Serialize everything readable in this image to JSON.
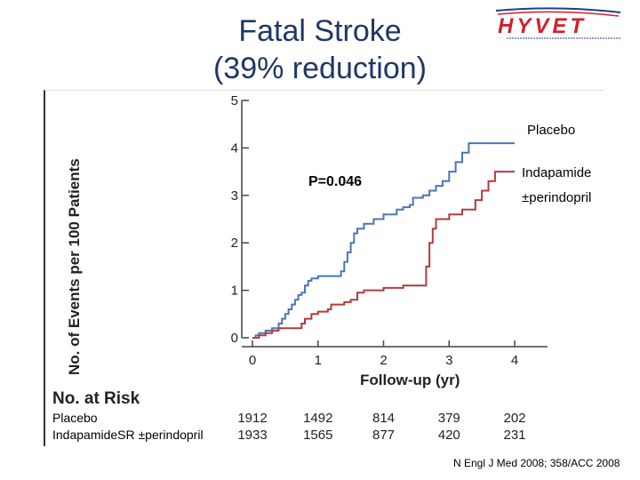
{
  "slide": {
    "title_line1": "Fatal Stroke",
    "title_line2": "(39% reduction)",
    "logo_text": "HYVET",
    "source": "N Engl J Med 2008; 358/ACC 2008"
  },
  "colors": {
    "title": "#1f3864",
    "placebo": "#4a75b6",
    "indapamide": "#b23b3b",
    "logo_red": "#d21f2a",
    "logo_blue": "#1e3f8f"
  },
  "chart_data": {
    "type": "line",
    "title": "",
    "xlabel": "Follow-up (yr)",
    "ylabel": "No. of Events per 100 Patients",
    "xlim": [
      0,
      4.5
    ],
    "ylim": [
      0,
      5
    ],
    "xticks": [
      0,
      1,
      2,
      3,
      4
    ],
    "yticks": [
      0,
      1,
      2,
      3,
      4,
      5
    ],
    "grid": false,
    "p_value": "P=0.046",
    "series": [
      {
        "name": "Placebo",
        "label_lines": [
          "Placebo"
        ],
        "color": "#4a75b6",
        "points": [
          [
            0,
            0
          ],
          [
            0.05,
            0.05
          ],
          [
            0.1,
            0.1
          ],
          [
            0.2,
            0.15
          ],
          [
            0.3,
            0.2
          ],
          [
            0.4,
            0.3
          ],
          [
            0.45,
            0.4
          ],
          [
            0.5,
            0.5
          ],
          [
            0.55,
            0.6
          ],
          [
            0.6,
            0.7
          ],
          [
            0.65,
            0.8
          ],
          [
            0.7,
            0.9
          ],
          [
            0.75,
            0.95
          ],
          [
            0.8,
            1.1
          ],
          [
            0.85,
            1.2
          ],
          [
            0.9,
            1.25
          ],
          [
            1.0,
            1.3
          ],
          [
            1.1,
            1.3
          ],
          [
            1.3,
            1.3
          ],
          [
            1.35,
            1.4
          ],
          [
            1.4,
            1.6
          ],
          [
            1.45,
            1.8
          ],
          [
            1.5,
            2.0
          ],
          [
            1.55,
            2.2
          ],
          [
            1.6,
            2.3
          ],
          [
            1.7,
            2.4
          ],
          [
            1.8,
            2.4
          ],
          [
            1.85,
            2.5
          ],
          [
            2.0,
            2.6
          ],
          [
            2.2,
            2.7
          ],
          [
            2.3,
            2.75
          ],
          [
            2.4,
            2.8
          ],
          [
            2.45,
            2.95
          ],
          [
            2.6,
            3.0
          ],
          [
            2.7,
            3.1
          ],
          [
            2.8,
            3.2
          ],
          [
            2.9,
            3.3
          ],
          [
            3.0,
            3.5
          ],
          [
            3.1,
            3.7
          ],
          [
            3.2,
            3.9
          ],
          [
            3.3,
            4.1
          ],
          [
            3.5,
            4.1
          ],
          [
            4.0,
            4.1
          ]
        ]
      },
      {
        "name": "Indapamide ±perindopril",
        "label_lines": [
          "Indapamide",
          "±perindopril"
        ],
        "color": "#b23b3b",
        "points": [
          [
            0,
            0
          ],
          [
            0.1,
            0.05
          ],
          [
            0.2,
            0.1
          ],
          [
            0.3,
            0.15
          ],
          [
            0.4,
            0.2
          ],
          [
            0.7,
            0.2
          ],
          [
            0.75,
            0.3
          ],
          [
            0.8,
            0.4
          ],
          [
            0.9,
            0.5
          ],
          [
            1.0,
            0.55
          ],
          [
            1.15,
            0.6
          ],
          [
            1.2,
            0.7
          ],
          [
            1.4,
            0.75
          ],
          [
            1.5,
            0.8
          ],
          [
            1.6,
            0.95
          ],
          [
            1.7,
            1.0
          ],
          [
            1.9,
            1.0
          ],
          [
            2.0,
            1.05
          ],
          [
            2.3,
            1.1
          ],
          [
            2.6,
            1.1
          ],
          [
            2.65,
            1.5
          ],
          [
            2.7,
            2.0
          ],
          [
            2.75,
            2.3
          ],
          [
            2.8,
            2.5
          ],
          [
            3.0,
            2.6
          ],
          [
            3.2,
            2.7
          ],
          [
            3.4,
            2.9
          ],
          [
            3.5,
            3.1
          ],
          [
            3.6,
            3.3
          ],
          [
            3.7,
            3.5
          ],
          [
            4.0,
            3.5
          ]
        ]
      }
    ],
    "risk_table": {
      "title": "No. at Risk",
      "rows": [
        {
          "label": "Placebo",
          "values": [
            1912,
            1492,
            814,
            379,
            202
          ]
        },
        {
          "label": "Indapamide SR ±perindopril",
          "display": "IndapamideSR ±perindopril",
          "values": [
            1933,
            1565,
            877,
            420,
            231
          ]
        }
      ]
    }
  }
}
